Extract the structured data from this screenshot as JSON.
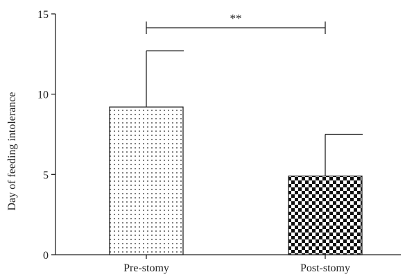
{
  "chart_data": {
    "type": "bar",
    "categories": [
      "Pre-stomy",
      "Post-stomy"
    ],
    "values": [
      9.2,
      4.9
    ],
    "error_upper": [
      12.7,
      7.5
    ],
    "bar_patterns": [
      "dots",
      "checkerboard"
    ],
    "title": "",
    "xlabel": "",
    "ylabel": "Day of feeding intolerance",
    "ylim": [
      0,
      15
    ],
    "yticks": [
      0,
      5,
      10,
      15
    ],
    "ytick_labels": [
      "0",
      "5",
      "10",
      "15"
    ],
    "grid": false,
    "significance": {
      "label": "**",
      "between": [
        "Pre-stomy",
        "Post-stomy"
      ]
    }
  }
}
